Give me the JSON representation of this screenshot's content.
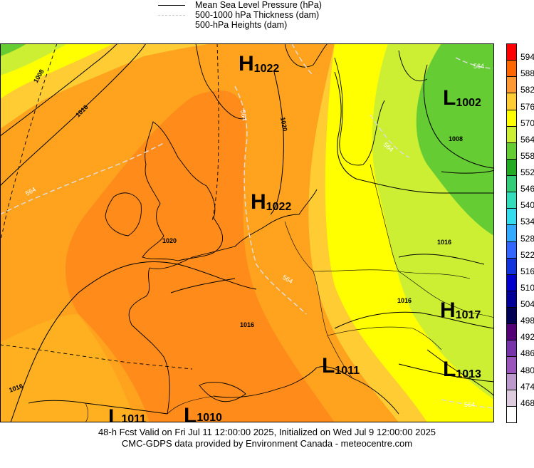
{
  "legend": {
    "items": [
      {
        "label": "Mean Sea Level Pressure (hPa)",
        "style": "solid-black"
      },
      {
        "label": "500-1000 hPa Thickness (dam)",
        "style": "dashed-light"
      },
      {
        "label": "500-hPa Heights (dam)",
        "style": "none"
      }
    ]
  },
  "colorbar": {
    "levels": [
      "594",
      "588",
      "582",
      "576",
      "570",
      "564",
      "558",
      "552",
      "546",
      "540",
      "534",
      "528",
      "522",
      "516",
      "510",
      "504",
      "498",
      "492",
      "486",
      "480",
      "474",
      "468"
    ],
    "colors": [
      "#ff0000",
      "#ff6600",
      "#ff9933",
      "#ffcc33",
      "#ffff00",
      "#ccee33",
      "#66cc33",
      "#22aa22",
      "#33cc77",
      "#33ddbb",
      "#33ddee",
      "#33aaff",
      "#3366ff",
      "#1133dd",
      "#0000cc",
      "#000099",
      "#000055",
      "#550077",
      "#7733aa",
      "#9955bb",
      "#bb99cc",
      "#ddccdd"
    ],
    "bottom_color": "#ffffff"
  },
  "pressure_centers": [
    {
      "letter": "H",
      "value": "1022"
    },
    {
      "letter": "H",
      "value": "1022"
    },
    {
      "letter": "L",
      "value": "1002"
    },
    {
      "letter": "H",
      "value": "1017"
    },
    {
      "letter": "L",
      "value": "1011"
    },
    {
      "letter": "L",
      "value": "1013"
    },
    {
      "letter": "L",
      "value": "1011"
    },
    {
      "letter": "L",
      "value": "1010"
    }
  ],
  "isobar_labels": [
    "1008",
    "1016",
    "1016",
    "1020",
    "1020",
    "1008",
    "1016",
    "1016",
    "1016"
  ],
  "thickness_labels": [
    "564",
    "564",
    "564",
    "564",
    "564",
    "564"
  ],
  "footer": {
    "line1": "48-h Fcst Valid on Fri Jul 11 12:00:00 2025, Initialized on Wed Jul  9 12:00:00 2025",
    "line2": "CMC-GDPS data provided by Environment Canada - meteocentre.com"
  }
}
